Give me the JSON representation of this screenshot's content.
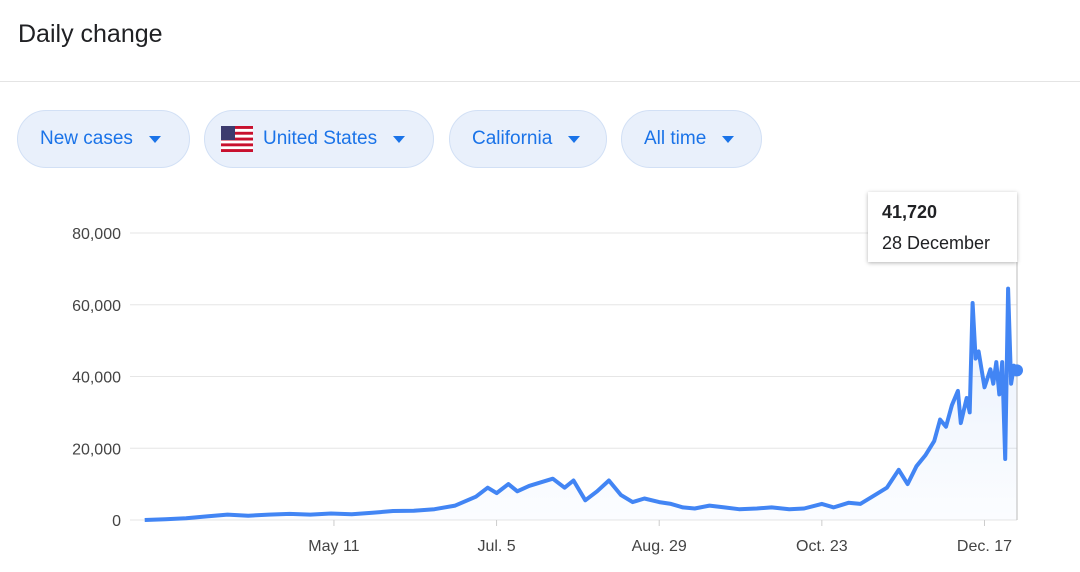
{
  "header": {
    "title": "Daily change"
  },
  "filters": [
    "New cases",
    "United States",
    "California",
    "All time"
  ],
  "tooltip": {
    "value": "41,720",
    "date": "28 December"
  },
  "chart_data": {
    "type": "line",
    "color": "#4285f4",
    "grid": true,
    "x": [
      "03-08",
      "03-15",
      "03-22",
      "03-29",
      "04-05",
      "04-12",
      "04-19",
      "04-26",
      "05-03",
      "05-10",
      "05-17",
      "05-24",
      "05-31",
      "06-07",
      "06-14",
      "06-21",
      "06-28",
      "07-02",
      "07-05",
      "07-09",
      "07-12",
      "07-16",
      "07-20",
      "07-24",
      "07-28",
      "07-31",
      "08-04",
      "08-08",
      "08-12",
      "08-16",
      "08-20",
      "08-24",
      "08-29",
      "09-02",
      "09-06",
      "09-10",
      "09-15",
      "09-20",
      "09-25",
      "10-01",
      "10-06",
      "10-12",
      "10-17",
      "10-23",
      "10-27",
      "11-01",
      "11-05",
      "11-10",
      "11-14",
      "11-18",
      "11-21",
      "11-24",
      "11-27",
      "11-30",
      "12-02",
      "12-04",
      "12-06",
      "12-08",
      "12-09",
      "12-11",
      "12-12",
      "12-13",
      "12-14",
      "12-15",
      "12-17",
      "12-19",
      "12-20",
      "12-21",
      "12-22",
      "12-23",
      "12-24",
      "12-25",
      "12-26",
      "12-27",
      "12-28"
    ],
    "values": [
      0,
      200,
      500,
      1000,
      1500,
      1200,
      1500,
      1700,
      1500,
      1800,
      1600,
      2000,
      2500,
      2600,
      3000,
      4000,
      6500,
      9000,
      7500,
      10000,
      8000,
      9500,
      10500,
      11500,
      9000,
      11000,
      5500,
      8000,
      11000,
      7000,
      5000,
      6000,
      5000,
      4500,
      3500,
      3200,
      4000,
      3500,
      3000,
      3200,
      3500,
      3000,
      3200,
      4500,
      3500,
      4800,
      4500,
      7000,
      9000,
      14000,
      10000,
      15000,
      18000,
      22000,
      28000,
      26000,
      32000,
      36000,
      27000,
      34000,
      30000,
      60500,
      45000,
      47000,
      37000,
      42000,
      38000,
      44000,
      35000,
      44000,
      17000,
      64500,
      38000,
      43000,
      41720
    ],
    "xlim": [
      "03-01",
      "12-28"
    ],
    "xticks": [
      {
        "value": "05-11",
        "label": "May 11"
      },
      {
        "value": "07-05",
        "label": "Jul. 5"
      },
      {
        "value": "08-29",
        "label": "Aug. 29"
      },
      {
        "value": "10-23",
        "label": "Oct. 23"
      },
      {
        "value": "12-17",
        "label": "Dec. 17"
      }
    ],
    "ylim": [
      0,
      80000
    ],
    "yticks": [
      {
        "value": 0,
        "label": "0"
      },
      {
        "value": 20000,
        "label": "20,000"
      },
      {
        "value": 40000,
        "label": "40,000"
      },
      {
        "value": 60000,
        "label": "60,000"
      },
      {
        "value": 80000,
        "label": "80,000"
      }
    ]
  }
}
